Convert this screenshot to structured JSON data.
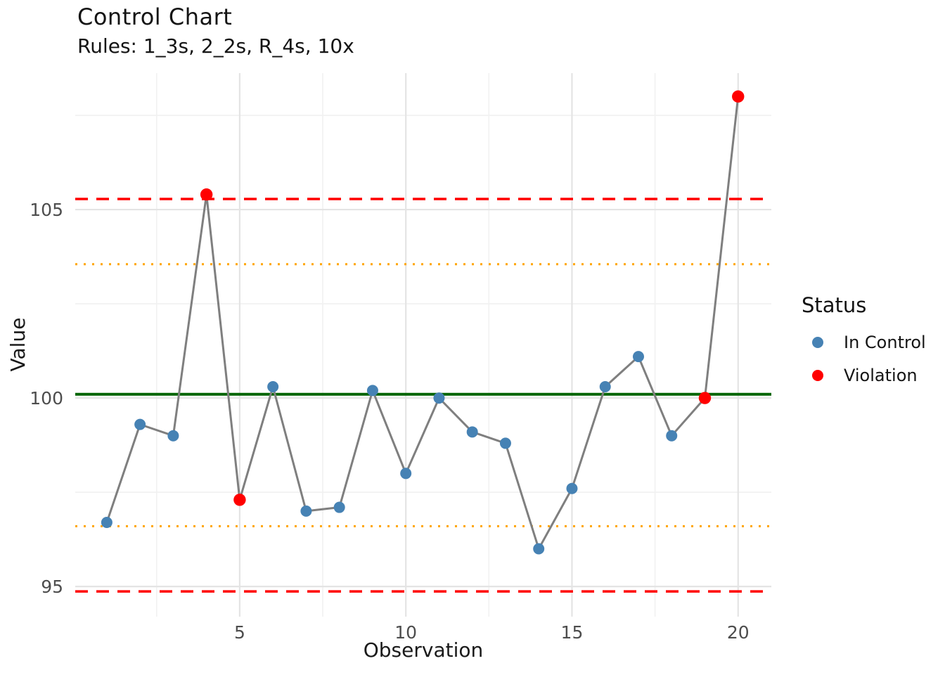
{
  "header": {
    "title": "Control Chart",
    "subtitle": "Rules: 1_3s, 2_2s, R_4s, 10x"
  },
  "legend": {
    "title": "Status",
    "position": "right",
    "items": [
      {
        "label": "In Control",
        "status": "in_control"
      },
      {
        "label": "Violation",
        "status": "violation"
      }
    ]
  },
  "colors": {
    "in_control": "#4682B4",
    "violation": "#FF0000",
    "center_line": "#006400",
    "limit_line": "#FF0000",
    "warning_line": "#FFA500",
    "series_line": "#7F7F7F",
    "grid_major": "#E4E4E4",
    "grid_minor": "#F1F1F1",
    "tick_text": "#4D4D4D",
    "text": "#141414"
  },
  "chart_data": {
    "type": "line",
    "title": "Control Chart",
    "subtitle": "Rules: 1_3s, 2_2s, R_4s, 10x",
    "xlabel": "Observation",
    "ylabel": "Value",
    "x": [
      1,
      2,
      3,
      4,
      5,
      6,
      7,
      8,
      9,
      10,
      11,
      12,
      13,
      14,
      15,
      16,
      17,
      18,
      19,
      20
    ],
    "values": [
      96.7,
      99.3,
      99.0,
      105.4,
      97.3,
      100.3,
      97.0,
      97.1,
      100.2,
      98.0,
      100.0,
      99.1,
      98.8,
      96.0,
      97.6,
      100.3,
      101.1,
      99.0,
      100.0,
      108.0
    ],
    "status": [
      "in_control",
      "in_control",
      "in_control",
      "violation",
      "violation",
      "in_control",
      "in_control",
      "in_control",
      "in_control",
      "in_control",
      "in_control",
      "in_control",
      "in_control",
      "in_control",
      "in_control",
      "in_control",
      "in_control",
      "in_control",
      "violation",
      "violation"
    ],
    "control_lines": {
      "center": 100.1,
      "ucl": 105.28,
      "lcl": 94.87,
      "warn_upper": 103.55,
      "warn_lower": 96.6
    },
    "xlim": [
      0.05,
      21.0
    ],
    "ylim": [
      94.2,
      108.62
    ],
    "xticks": [
      5,
      10,
      15,
      20
    ],
    "yticks": [
      95,
      100,
      105
    ],
    "xticks_minor": [
      2.5,
      7.5,
      12.5,
      17.5
    ],
    "yticks_minor": [
      97.5,
      102.5,
      107.5
    ],
    "grid": true,
    "legend_position": "right",
    "legend_entries": [
      "In Control",
      "Violation"
    ]
  }
}
